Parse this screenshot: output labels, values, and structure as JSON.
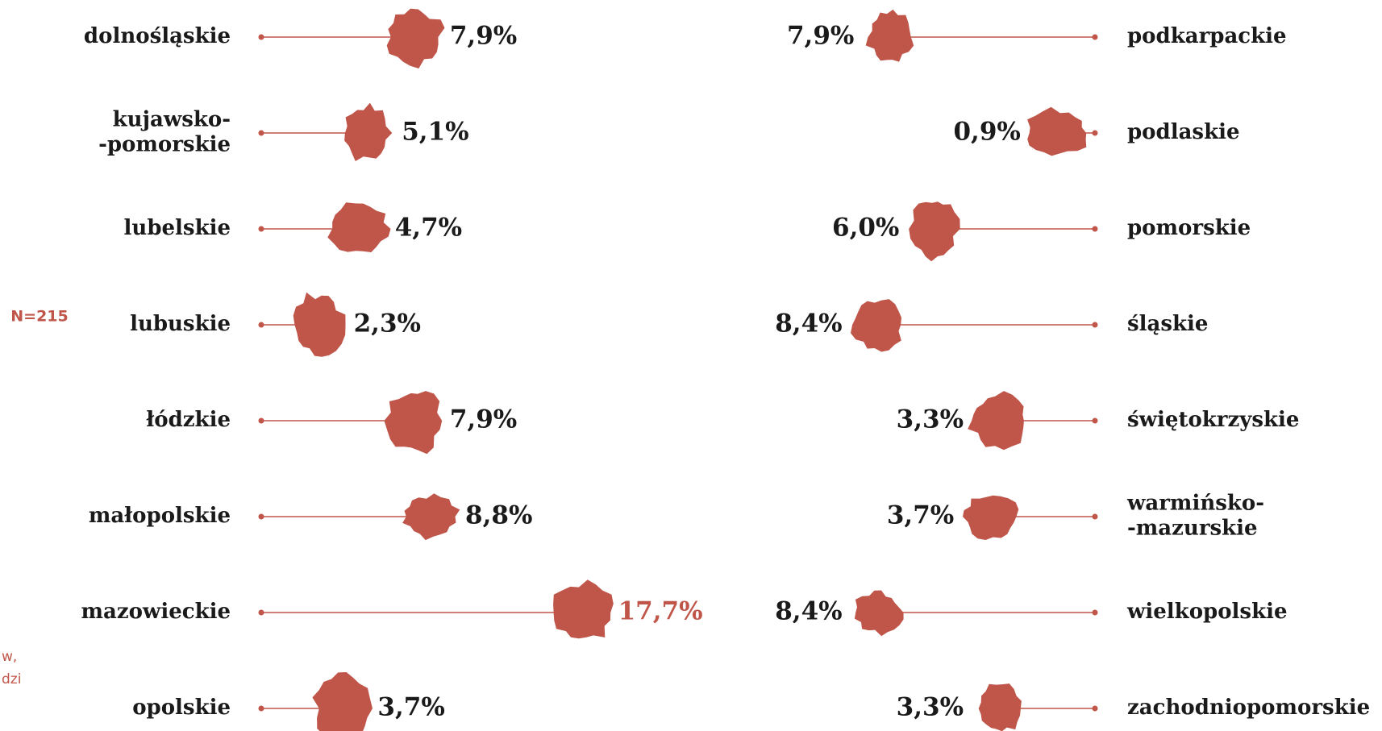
{
  "note": "N=215",
  "fragments": [
    "w,",
    "dzi"
  ],
  "chart_data": [
    {
      "type": "lollipop",
      "direction": "right",
      "color": "#c0564a",
      "categories": [
        "dolnośląskie",
        "kujawsko-\n-pomorskie",
        "lubelskie",
        "lubuskie",
        "łódzkie",
        "małopolskie",
        "mazowieckie",
        "opolskie"
      ],
      "values": [
        7.9,
        5.1,
        4.7,
        2.3,
        7.9,
        8.8,
        17.7,
        3.7
      ],
      "value_labels": [
        "7,9%",
        "5,1%",
        "4,7%",
        "2,3%",
        "7,9%",
        "8,8%",
        "17,7%",
        "3,7%"
      ]
    },
    {
      "type": "lollipop",
      "direction": "left",
      "color": "#c0564a",
      "categories": [
        "podkarpackie",
        "podlaskie",
        "pomorskie",
        "śląskie",
        "świętokrzyskie",
        "warmińsko-\n-mazurskie",
        "wielkopolskie",
        "zachodniopomorskie"
      ],
      "values": [
        7.9,
        0.9,
        6.0,
        8.4,
        3.3,
        3.7,
        8.4,
        3.3
      ],
      "value_labels": [
        "7,9%",
        "0,9%",
        "6,0%",
        "8,4%",
        "3,3%",
        "3,7%",
        "8,4%",
        "3,3%"
      ]
    }
  ]
}
